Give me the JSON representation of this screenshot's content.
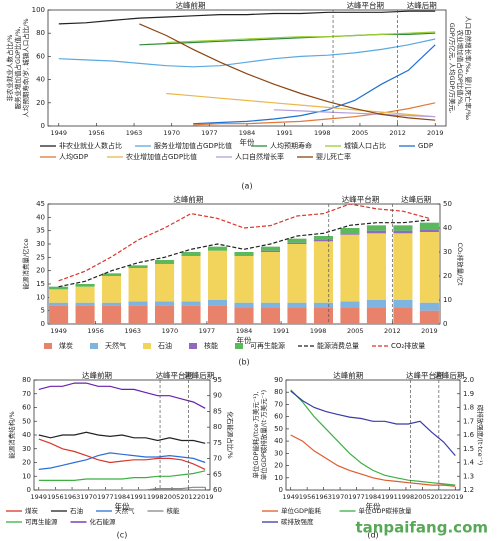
{
  "chart_data": [
    {
      "type": "line",
      "caption": "(a)",
      "xlabel": "年份",
      "ylabel": [
        "非农业就业人数占比/%",
        "服务业增加值占GDP比值/%,",
        "人均预期寿命/岁, 城镇人口占比/%"
      ],
      "y2label": [
        "GDP/万亿元, 人均GDP/万美元,",
        "农业增加值占GDP比值/%,",
        "人口自然增长率/‰, 婴儿死亡率/‰"
      ],
      "phases": [
        "达峰前期",
        "达峰平台期",
        "达峰后期"
      ],
      "phase_bounds": [
        2000,
        2012
      ],
      "x": [
        1949,
        1954,
        1959,
        1964,
        1969,
        1974,
        1979,
        1984,
        1989,
        1994,
        1999,
        2004,
        2009,
        2014,
        2019
      ],
      "xlim": [
        1947,
        2021
      ],
      "xticks": [
        1949,
        1956,
        1963,
        1970,
        1977,
        1984,
        1991,
        1998,
        2005,
        2012,
        2019
      ],
      "ylim": [
        0,
        100
      ],
      "yticks": [
        0,
        20,
        40,
        60,
        80,
        100
      ],
      "series": [
        {
          "name": "非农业就业人数占比",
          "color": "#222222",
          "values": [
            88,
            89,
            91,
            93,
            94,
            95,
            96,
            96,
            97,
            97,
            98,
            98,
            98,
            99,
            99
          ]
        },
        {
          "name": "服务业增加值占GDP比值",
          "color": "#5aa9e0",
          "values": [
            58,
            57,
            56,
            54,
            52,
            51,
            52,
            55,
            58,
            60,
            61,
            63,
            66,
            70,
            75
          ]
        },
        {
          "name": "人均预期寿命",
          "color": "#2e8b3e",
          "values": [
            null,
            null,
            null,
            70,
            71,
            72,
            73,
            74,
            75,
            76,
            77,
            78,
            79,
            79,
            80
          ]
        },
        {
          "name": "城镇人口占比",
          "color": "#9acd32",
          "values": [
            null,
            null,
            null,
            null,
            72,
            73,
            74,
            75,
            76,
            77,
            77,
            78,
            79,
            80,
            81
          ]
        },
        {
          "name": "GDP",
          "color": "#1f6fd1",
          "values": [
            null,
            null,
            null,
            null,
            null,
            2,
            3,
            4,
            6,
            9,
            14,
            22,
            36,
            48,
            70
          ]
        },
        {
          "name": "人均GDP",
          "color": "#e07a3a",
          "values": [
            null,
            null,
            null,
            null,
            null,
            1,
            2,
            2,
            3,
            4,
            6,
            8,
            11,
            15,
            20
          ]
        },
        {
          "name": "农业增加值占GDP比值",
          "color": "#e8b84a",
          "values": [
            null,
            null,
            null,
            null,
            28,
            26,
            24,
            22,
            20,
            18,
            16,
            14,
            12,
            10,
            8
          ]
        },
        {
          "name": "人口自然增长率",
          "color": "#b39ddb",
          "values": [
            null,
            null,
            null,
            null,
            null,
            null,
            null,
            null,
            14,
            13,
            12,
            11,
            10,
            9,
            8
          ]
        },
        {
          "name": "婴儿死亡率",
          "color": "#8b4513",
          "values": [
            null,
            null,
            null,
            88,
            78,
            66,
            55,
            45,
            36,
            28,
            21,
            15,
            10,
            7,
            5
          ]
        }
      ]
    },
    {
      "type": "bar",
      "caption": "(b)",
      "xlabel": "年份",
      "ylabel": [
        "能源消费量/亿tce"
      ],
      "y2label": [
        "CO₂排放量/亿t"
      ],
      "phases": [
        "达峰前期",
        "达峰平台期",
        "达峰后期"
      ],
      "phase_bounds": [
        2000,
        2012
      ],
      "x": [
        1949,
        1954,
        1959,
        1964,
        1969,
        1974,
        1979,
        1984,
        1989,
        1994,
        1999,
        2004,
        2009,
        2014,
        2019
      ],
      "xlim": [
        1947,
        2021
      ],
      "xticks": [
        1949,
        1956,
        1963,
        1970,
        1977,
        1984,
        1991,
        1998,
        2005,
        2012,
        2019
      ],
      "ylim": [
        0,
        45
      ],
      "yticks": [
        0,
        5,
        10,
        15,
        20,
        25,
        30,
        35,
        40,
        45
      ],
      "y2lim": [
        0,
        50
      ],
      "y2ticks": [
        0,
        10,
        20,
        30,
        40,
        50
      ],
      "series": [
        {
          "name": "煤炭",
          "type": "bar",
          "color": "#e8826b",
          "values": [
            7,
            7,
            7,
            7,
            7,
            7,
            7,
            6,
            6,
            6,
            6,
            6,
            6,
            6,
            5
          ]
        },
        {
          "name": "天然气",
          "type": "bar",
          "color": "#7fb3e0",
          "values": [
            1,
            1,
            1,
            1.5,
            1.5,
            1.5,
            2,
            2,
            2,
            2,
            2,
            2.5,
            3,
            3,
            3
          ]
        },
        {
          "name": "石油",
          "type": "bar",
          "color": "#f2d45c",
          "values": [
            5,
            6,
            10,
            12.5,
            14,
            17,
            18.5,
            17.5,
            19,
            22,
            23,
            25,
            25,
            25,
            26.5
          ]
        },
        {
          "name": "核能",
          "type": "bar",
          "color": "#8e6bbf",
          "values": [
            0,
            0,
            0,
            0,
            0,
            0,
            0,
            0,
            0.5,
            0.5,
            0.5,
            0.5,
            1,
            1,
            1
          ]
        },
        {
          "name": "可再生能源",
          "type": "bar",
          "color": "#5cb85c",
          "values": [
            1,
            1,
            1,
            1,
            1.5,
            1.5,
            1.5,
            1.5,
            1.5,
            1.5,
            1.5,
            2,
            2,
            2,
            2.5
          ]
        },
        {
          "name": "能源消费总量",
          "type": "line",
          "dashed": true,
          "color": "#222222",
          "values": [
            14,
            16,
            20,
            23,
            25,
            28,
            30,
            28,
            30,
            33,
            34,
            37,
            38,
            38,
            39
          ]
        },
        {
          "name": "CO₂排放量",
          "type": "line",
          "dashed": true,
          "axis": "y2",
          "color": "#d9362b",
          "values": [
            18,
            22,
            28,
            35,
            40,
            46,
            44,
            40,
            41,
            45,
            46,
            50,
            48,
            47,
            44
          ]
        }
      ]
    },
    {
      "type": "line",
      "caption": "(c)",
      "xlabel": "年份",
      "ylabel": [
        "能源消费结构/%"
      ],
      "y2label": [
        "化石能源占比/%"
      ],
      "phases": [
        "达峰前期",
        "达峰平台期",
        "达峰后期"
      ],
      "phase_bounds": [
        2000,
        2012
      ],
      "x": [
        1949,
        1954,
        1959,
        1964,
        1969,
        1974,
        1979,
        1984,
        1989,
        1994,
        1999,
        2004,
        2009,
        2014,
        2019
      ],
      "xlim": [
        1947,
        2021
      ],
      "xticks": [
        1949,
        1956,
        1963,
        1970,
        1977,
        1984,
        1991,
        1998,
        2005,
        2012,
        2019
      ],
      "ylim": [
        0,
        80
      ],
      "yticks": [
        0,
        10,
        20,
        30,
        40,
        50,
        60,
        70,
        80
      ],
      "y2lim": [
        60,
        95
      ],
      "y2ticks": [
        60,
        65,
        70,
        75,
        80,
        85,
        90,
        95
      ],
      "series": [
        {
          "name": "煤炭",
          "color": "#d9362b",
          "values": [
            37,
            34,
            30,
            28,
            25,
            22,
            20,
            21,
            22,
            22,
            23,
            23,
            22,
            19,
            15
          ]
        },
        {
          "name": "石油",
          "color": "#222222",
          "values": [
            40,
            38,
            40,
            40,
            42,
            40,
            39,
            40,
            38,
            38,
            36,
            38,
            36,
            36,
            34
          ]
        },
        {
          "name": "天然气",
          "color": "#2b6fd6",
          "values": [
            15,
            16,
            18,
            20,
            22,
            25,
            27,
            26,
            25,
            24,
            24,
            25,
            24,
            23,
            20
          ]
        },
        {
          "name": "核能",
          "color": "#888888",
          "values": [
            0,
            0,
            0,
            0,
            0,
            0,
            0,
            0,
            0,
            0,
            1,
            1,
            1,
            2,
            2
          ]
        },
        {
          "name": "可再生能源",
          "color": "#3cb043",
          "values": [
            7,
            7,
            7,
            7,
            8,
            8,
            8,
            8,
            9,
            9,
            10,
            10,
            11,
            12,
            14
          ]
        },
        {
          "name": "化石能源",
          "axis": "y2",
          "color": "#6a1fb0",
          "values": [
            92,
            93,
            93,
            94,
            94,
            93,
            93,
            92,
            92,
            91,
            90,
            90,
            89,
            88,
            86
          ]
        }
      ]
    },
    {
      "type": "line",
      "caption": "(d)",
      "xlabel": "年份",
      "ylabel": [
        "单位GDP能耗/(tce·万美元⁻¹),",
        "单位GDP碳排放量/(t·万美元⁻¹)"
      ],
      "y2label": [
        "碳排放强度/(t·tce⁻¹)"
      ],
      "phases": [
        "达峰前期",
        "达峰平台期",
        "达峰后期"
      ],
      "phase_bounds": [
        2000,
        2012
      ],
      "x": [
        1949,
        1954,
        1959,
        1964,
        1969,
        1974,
        1979,
        1984,
        1989,
        1994,
        1999,
        2004,
        2009,
        2014,
        2019
      ],
      "xlim": [
        1947,
        2021
      ],
      "xticks": [
        1949,
        1956,
        1963,
        1970,
        1977,
        1984,
        1991,
        1998,
        2005,
        2012,
        2019
      ],
      "ylim": [
        0,
        90
      ],
      "yticks": [
        0,
        10,
        20,
        30,
        40,
        50,
        60,
        70,
        80,
        90
      ],
      "y2lim": [
        1.2,
        2
      ],
      "y2ticks": [
        1.2,
        1.3,
        1.4,
        1.5,
        1.6,
        1.7,
        1.8,
        1.9,
        {
          "value": 2,
          "label": "2.0"
        }
      ],
      "series": [
        {
          "name": "单位GDP能耗",
          "color": "#e05a2b",
          "values": [
            45,
            40,
            32,
            26,
            20,
            16,
            13,
            10,
            8,
            7,
            6,
            5,
            4,
            4,
            3
          ]
        },
        {
          "name": "单位GDP碳排放量",
          "color": "#3cb043",
          "values": [
            82,
            72,
            60,
            50,
            40,
            30,
            22,
            16,
            12,
            10,
            8,
            7,
            6,
            5,
            4
          ]
        },
        {
          "name": "碳排放强度",
          "axis": "y2",
          "color": "#3a3aa8",
          "values": [
            1.92,
            1.85,
            1.8,
            1.77,
            1.75,
            1.73,
            1.72,
            1.7,
            1.7,
            1.68,
            1.68,
            1.7,
            1.62,
            1.55,
            1.45
          ]
        }
      ]
    }
  ],
  "watermark": "tanpaifang.com"
}
